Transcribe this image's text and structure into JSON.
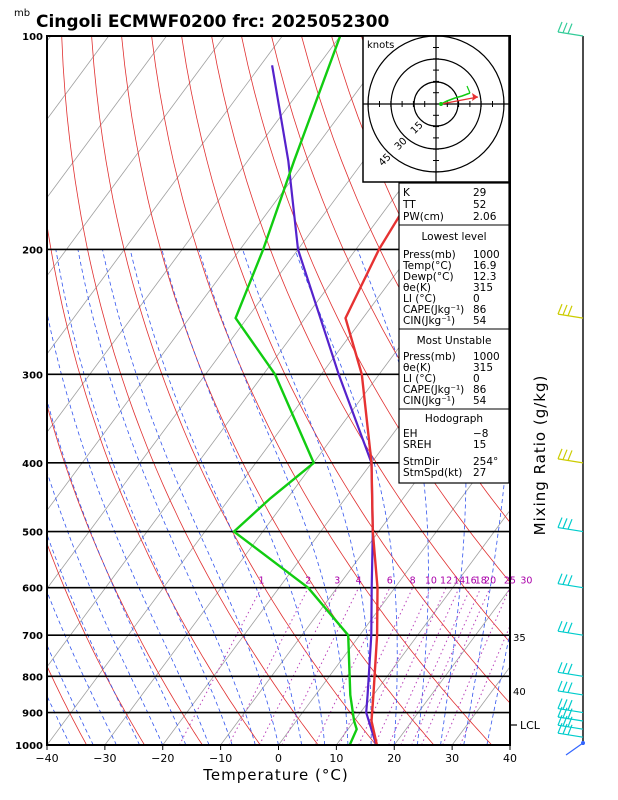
{
  "header": {
    "unit_mb": "mb",
    "title": "Cingoli ECMWF0200  frc: 2025052300"
  },
  "chart_data": {
    "type": "skewt",
    "xlabel": "Temperature (°C)",
    "ylabel_right": "Mixing Ratio (g/kg)",
    "xlim": [
      -40,
      40
    ],
    "ylim": [
      1000,
      100
    ],
    "x_ticks": [
      "−40",
      "−30",
      "−20",
      "−10",
      "0",
      "10",
      "20",
      "30",
      "40"
    ],
    "x_tick_values": [
      -40,
      -30,
      -20,
      -10,
      0,
      10,
      20,
      30,
      40
    ],
    "pressure_levels": [
      {
        "p": 100,
        "label": "100"
      },
      {
        "p": 200,
        "label": "200"
      },
      {
        "p": 300,
        "label": "300"
      },
      {
        "p": 400,
        "label": "400"
      },
      {
        "p": 500,
        "label": "500"
      },
      {
        "p": 600,
        "label": "600"
      },
      {
        "p": 700,
        "label": "700"
      },
      {
        "p": 800,
        "label": "800"
      },
      {
        "p": 900,
        "label": "900"
      },
      {
        "p": 1000,
        "label": "1000"
      }
    ],
    "mixing_ratio_labels": [
      {
        "w": "1",
        "label": "1"
      },
      {
        "w": "2",
        "label": "2"
      },
      {
        "w": "3",
        "label": "3"
      },
      {
        "w": "4",
        "label": "4"
      },
      {
        "w": "6",
        "label": "6"
      },
      {
        "w": "8",
        "label": "8"
      },
      {
        "w": "10",
        "label": "10"
      },
      {
        "w": "12",
        "label": "12"
      },
      {
        "w": "14",
        "label": "14"
      },
      {
        "w": "16",
        "label": "16"
      },
      {
        "w": "18",
        "label": "18"
      },
      {
        "w": "20",
        "label": "20"
      },
      {
        "w": "25",
        "label": "25"
      },
      {
        "w": "30",
        "label": "30"
      }
    ],
    "theta_e_labels": [
      "35",
      "40"
    ],
    "lcl_label": "LCL",
    "temperature_profile": [
      {
        "p": 1000,
        "t": 17
      },
      {
        "p": 925,
        "t": 13
      },
      {
        "p": 850,
        "t": 10
      },
      {
        "p": 700,
        "t": 3
      },
      {
        "p": 600,
        "t": -3
      },
      {
        "p": 500,
        "t": -11
      },
      {
        "p": 400,
        "t": -20
      },
      {
        "p": 300,
        "t": -33
      },
      {
        "p": 250,
        "t": -43
      },
      {
        "p": 200,
        "t": -46
      },
      {
        "p": 150,
        "t": -48
      },
      {
        "p": 100,
        "t": -53
      }
    ],
    "dewpoint_profile": [
      {
        "p": 1000,
        "t": 12.3
      },
      {
        "p": 950,
        "t": 11.5
      },
      {
        "p": 925,
        "t": 10
      },
      {
        "p": 850,
        "t": 6
      },
      {
        "p": 700,
        "t": -2
      },
      {
        "p": 600,
        "t": -15
      },
      {
        "p": 500,
        "t": -35
      },
      {
        "p": 450,
        "t": -33
      },
      {
        "p": 400,
        "t": -30
      },
      {
        "p": 300,
        "t": -48
      },
      {
        "p": 250,
        "t": -62
      },
      {
        "p": 200,
        "t": -66
      },
      {
        "p": 150,
        "t": -72
      },
      {
        "p": 100,
        "t": -80
      }
    ],
    "parcel_profile": [
      {
        "p": 1000,
        "t": 16.9
      },
      {
        "p": 900,
        "t": 11
      },
      {
        "p": 850,
        "t": 9
      },
      {
        "p": 700,
        "t": 2
      },
      {
        "p": 600,
        "t": -4
      },
      {
        "p": 500,
        "t": -11
      },
      {
        "p": 400,
        "t": -20
      },
      {
        "p": 300,
        "t": -37
      },
      {
        "p": 200,
        "t": -60
      },
      {
        "p": 150,
        "t": -73
      },
      {
        "p": 110,
        "t": -88
      }
    ],
    "hodograph": {
      "units": "knots",
      "ring_labels": [
        "15",
        "30",
        "45"
      ]
    },
    "wind_barbs_right": [
      {
        "p": 100,
        "color": "#33cc99"
      },
      {
        "p": 250,
        "color": "#cccc00"
      },
      {
        "p": 400,
        "color": "#cccc00"
      },
      {
        "p": 500,
        "color": "#00cccc"
      },
      {
        "p": 600,
        "color": "#00cccc"
      },
      {
        "p": 700,
        "color": "#00cccc"
      },
      {
        "p": 800,
        "color": "#00cccc"
      },
      {
        "p": 850,
        "color": "#00cccc"
      },
      {
        "p": 900,
        "color": "#00cccc"
      },
      {
        "p": 925,
        "color": "#00cccc"
      },
      {
        "p": 950,
        "color": "#00cccc"
      },
      {
        "p": 975,
        "color": "#00cccc"
      },
      {
        "p": 1000,
        "color": "#3366ff"
      }
    ]
  },
  "indices": {
    "top": [
      {
        "name": "K",
        "value": "29"
      },
      {
        "name": "TT",
        "value": "52"
      },
      {
        "name": "PW(cm)",
        "value": "2.06"
      }
    ],
    "lowest": {
      "title": "Lowest level",
      "rows": [
        {
          "name": "Press(mb)",
          "value": "1000"
        },
        {
          "name": "Temp(°C)",
          "value": "16.9"
        },
        {
          "name": "Dewp(°C)",
          "value": "12.3"
        },
        {
          "name": "θe(K)",
          "value": "315"
        },
        {
          "name": "LI (°C)",
          "value": "0"
        },
        {
          "name": "CAPE(Jkg⁻¹)",
          "value": "86"
        },
        {
          "name": "CIN(Jkg⁻¹)",
          "value": "54"
        }
      ]
    },
    "unstable": {
      "title": "Most Unstable",
      "rows": [
        {
          "name": "Press(mb)",
          "value": "1000"
        },
        {
          "name": "θe(K)",
          "value": "315"
        },
        {
          "name": "LI (°C)",
          "value": "0"
        },
        {
          "name": "CAPE(Jkg⁻¹)",
          "value": "86"
        },
        {
          "name": "CIN(Jkg⁻¹)",
          "value": "54"
        }
      ]
    },
    "hodo": {
      "title": "Hodograph",
      "rows": [
        {
          "name": "EH",
          "value": "−8"
        },
        {
          "name": "SREH",
          "value": "15"
        },
        {
          "name": "StmDir",
          "value": "254°"
        },
        {
          "name": "StmSpd(kt)",
          "value": "27"
        }
      ]
    }
  },
  "colors": {
    "isotherm": "#a0a0a0",
    "dry_adiabat": "#e03030",
    "moist_adiabat": "#3355ee",
    "mixing_ratio": "#bb44bb",
    "temperature": "#e63232",
    "dewpoint": "#11cc11",
    "parcel": "#5522cc",
    "label_purple": "#aa00aa"
  }
}
